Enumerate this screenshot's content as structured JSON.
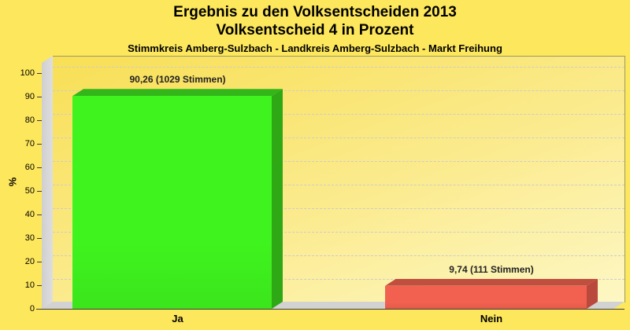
{
  "page": {
    "background": "#FDE75C"
  },
  "header": {
    "title_line1": "Ergebnis zu den Volksentscheiden 2013",
    "title_line2": "Volksentscheid 4 in Prozent",
    "subtitle": "Stimmkreis Amberg-Sulzbach - Landkreis Amberg-Sulzbach - Markt Freihung"
  },
  "chart_data": {
    "type": "bar",
    "style": "3d-bar",
    "categories": [
      "Ja",
      "Nein"
    ],
    "values": [
      90.26,
      9.74
    ],
    "bar_labels": [
      "90,26 (1029 Stimmen)",
      "9,74 (111 Stimmen)"
    ],
    "votes": [
      1029,
      111
    ],
    "title": "Ergebnis zu den Volksentscheiden 2013 - Volksentscheid 4 in Prozent",
    "xlabel": "",
    "ylabel": "%",
    "ylim": [
      0,
      105
    ],
    "yticks": [
      0,
      10,
      20,
      30,
      40,
      50,
      60,
      70,
      80,
      90,
      100
    ],
    "grid": "horizontal-dashed",
    "legend": "none",
    "colors": {
      "bar_front": [
        "#3FF31E",
        "#F2614F"
      ],
      "bar_top": [
        "#33B619",
        "#C14F3F"
      ],
      "bar_side": [
        "#2EA815",
        "#B8493C"
      ],
      "plot_background_top": "#F8DF55",
      "plot_background_bottom": "#FDF7C4",
      "wall": "#D6D6D6",
      "gridline": "#CCCCCC",
      "page_background": "#FDE75C"
    }
  }
}
